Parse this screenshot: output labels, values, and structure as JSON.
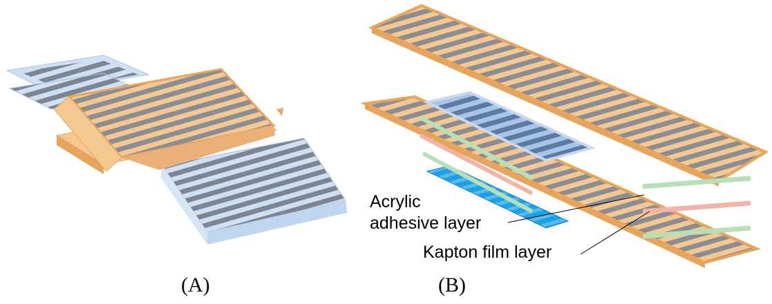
{
  "figure": {
    "panels": [
      {
        "label": "(A)"
      },
      {
        "label": "(B)"
      }
    ],
    "annotations": {
      "acrylic_line1": "Acrylic",
      "acrylic_line2": "adhesive layer",
      "kapton": "Kapton film layer"
    },
    "colors": {
      "kapton_orange": "#f6c891",
      "kapton_edge": "#e7a55c",
      "trace_gray": "#8a8d93",
      "substrate_blue": "#bfd6ee",
      "blue_layer": "#6e95c8",
      "bright_blue": "#1aa1e6",
      "adhesive_green": "#b9dfb7",
      "kapton_pink": "#f2b3a8"
    }
  }
}
